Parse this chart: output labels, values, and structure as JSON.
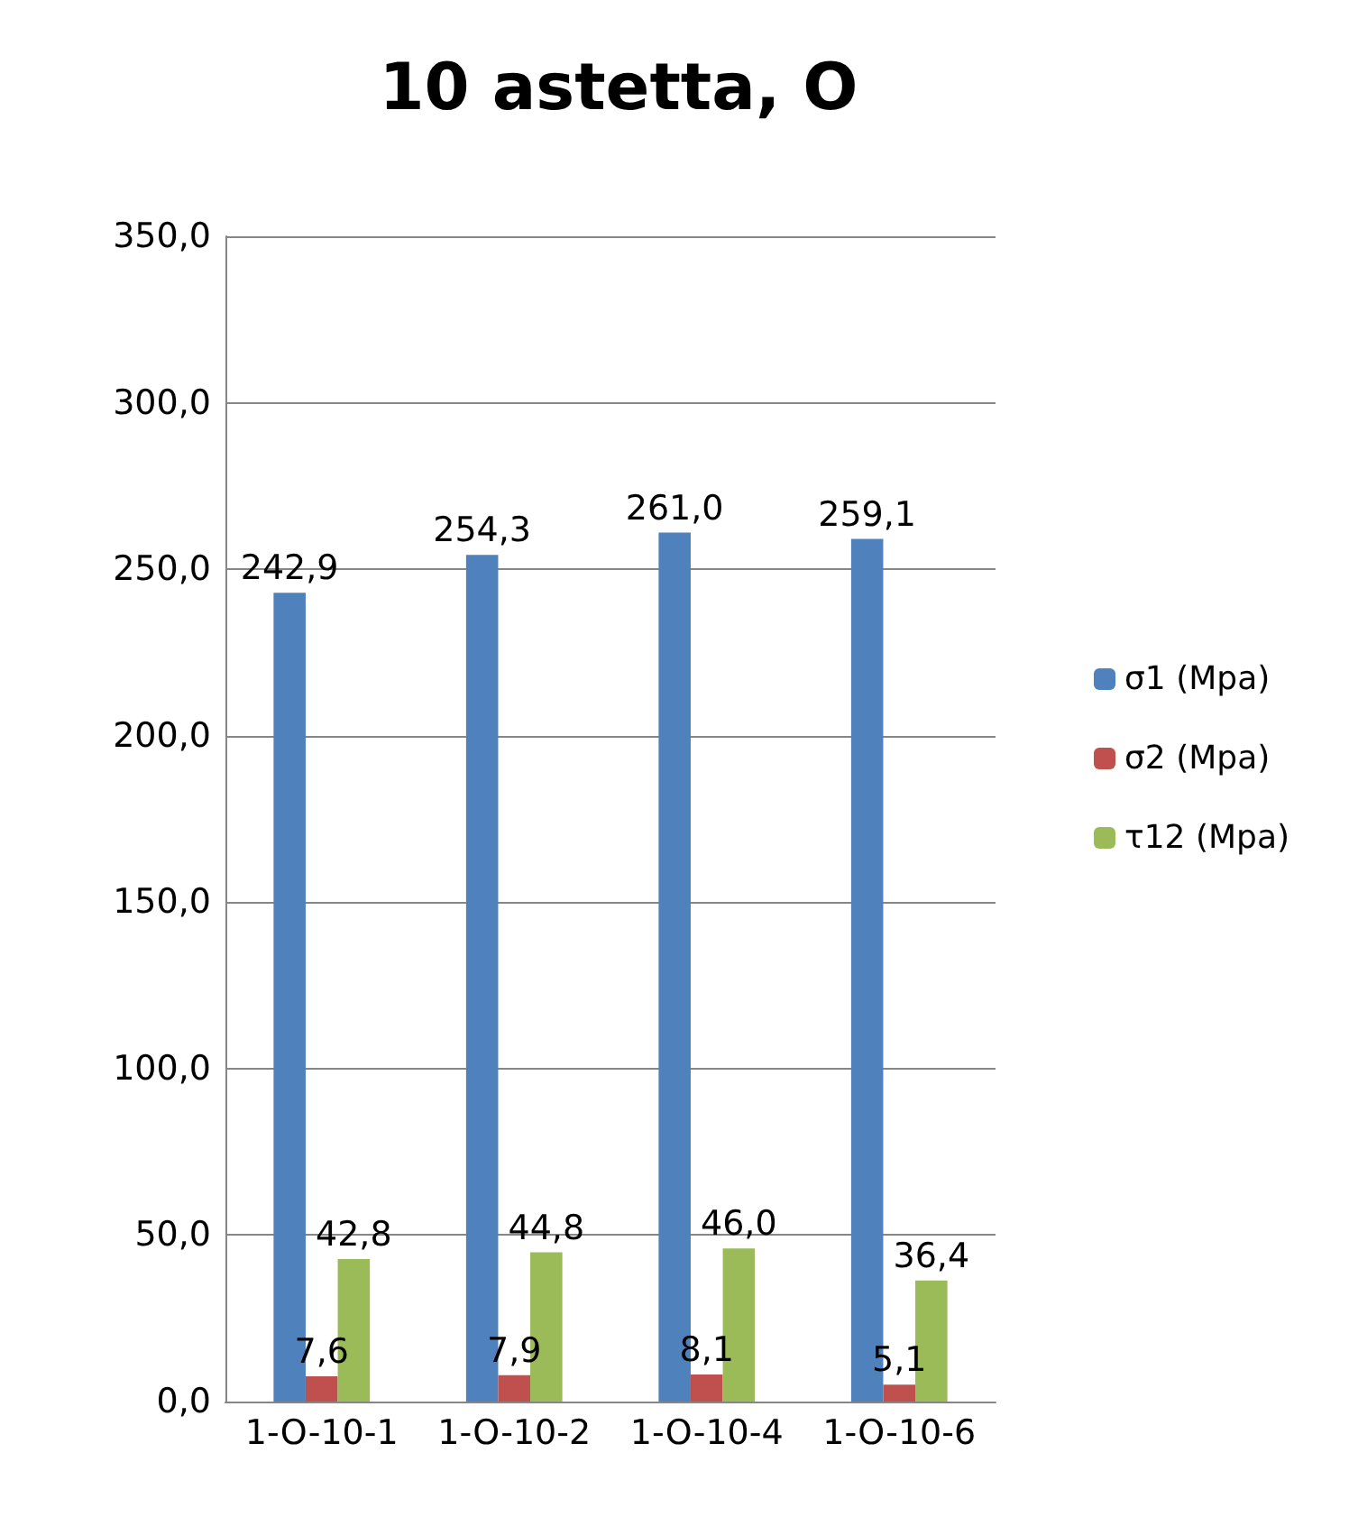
{
  "chart_data": {
    "type": "bar",
    "title": "10 astetta, O",
    "categories": [
      "1-O-10-1",
      "1-O-10-2",
      "1-O-10-4",
      "1-O-10-6"
    ],
    "series": [
      {
        "name": "σ1 (Mpa)",
        "color": "#4f81bd",
        "values": [
          242.9,
          254.3,
          261.0,
          259.1
        ],
        "value_labels": [
          "242,9",
          "254,3",
          "261,0",
          "259,1"
        ]
      },
      {
        "name": "σ2 (Mpa)",
        "color": "#c0504d",
        "values": [
          7.6,
          7.9,
          8.1,
          5.1
        ],
        "value_labels": [
          "7,6",
          "7,9",
          "8,1",
          "5,1"
        ]
      },
      {
        "name": "τ12 (Mpa)",
        "color": "#9bbb59",
        "values": [
          42.8,
          44.8,
          46.0,
          36.4
        ],
        "value_labels": [
          "42,8",
          "44,8",
          "46,0",
          "36,4"
        ]
      }
    ],
    "ylim": [
      0,
      350
    ],
    "yticks": [
      {
        "value": 0,
        "label": "0,0"
      },
      {
        "value": 50,
        "label": "50,0"
      },
      {
        "value": 100,
        "label": "100,0"
      },
      {
        "value": 150,
        "label": "150,0"
      },
      {
        "value": 200,
        "label": "200,0"
      },
      {
        "value": 250,
        "label": "250,0"
      },
      {
        "value": 300,
        "label": "300,0"
      },
      {
        "value": 350,
        "label": "350,0"
      }
    ],
    "grid": "y",
    "legend": "right"
  }
}
